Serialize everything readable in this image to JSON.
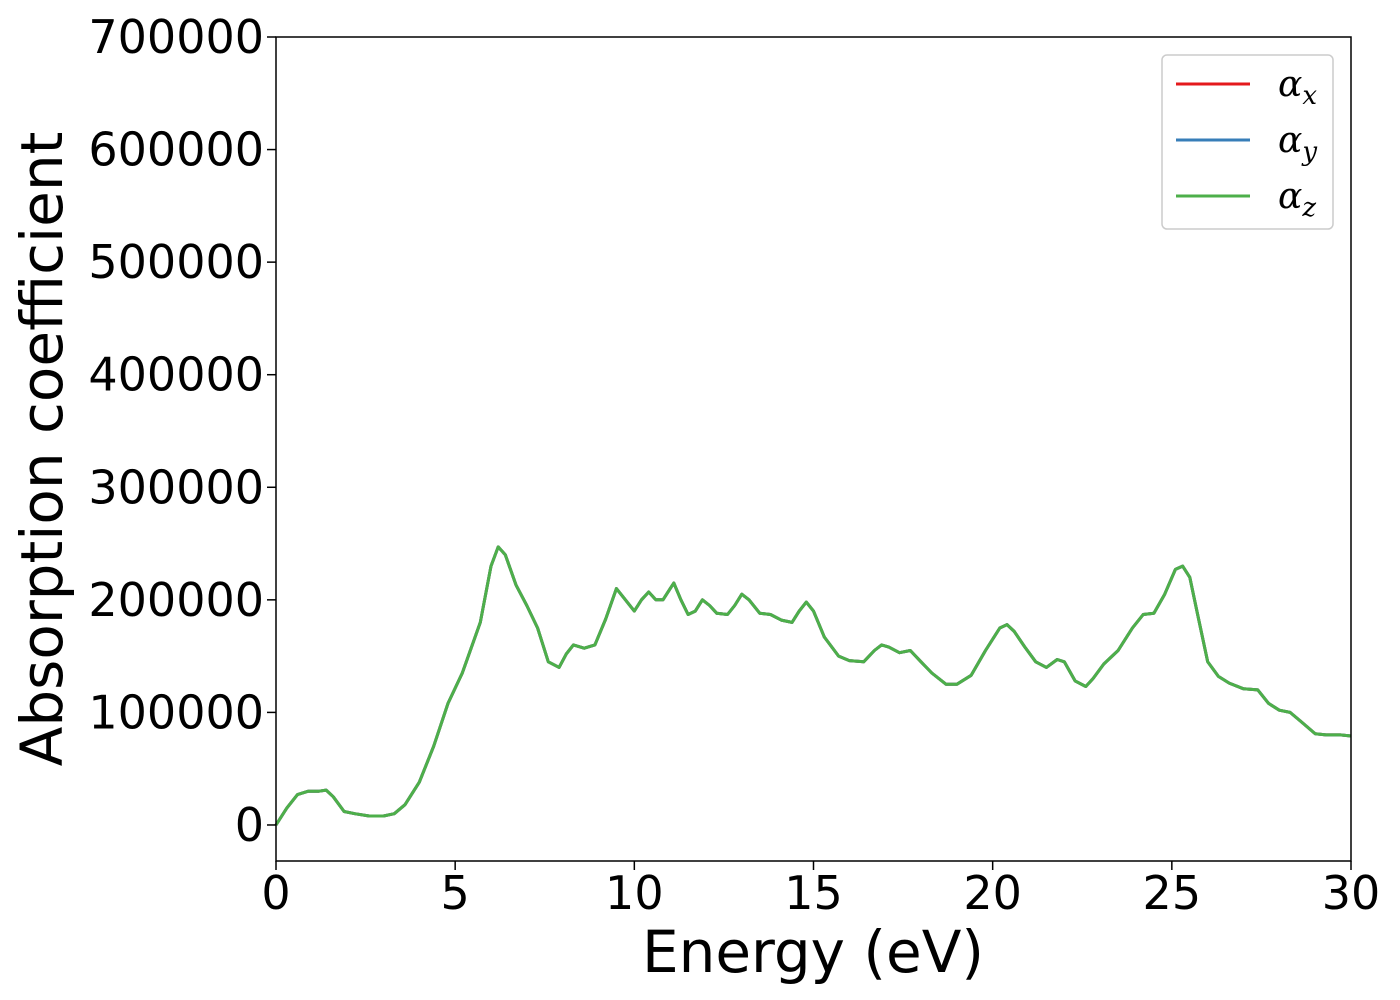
{
  "chart_data": {
    "type": "line",
    "xlabel": "Energy (eV)",
    "ylabel": "Absorption coefficient",
    "xlim": [
      0,
      30
    ],
    "ylim": [
      -32000,
      700000
    ],
    "x_ticks": [
      "0",
      "5",
      "10",
      "15",
      "20",
      "25",
      "30"
    ],
    "y_ticks": [
      "0",
      "100000",
      "200000",
      "300000",
      "400000",
      "500000",
      "600000",
      "700000"
    ],
    "legend_position": "top-right",
    "grid": false,
    "series": [
      {
        "name": "α",
        "subscript": "x",
        "color": "#e41a1c",
        "x": [
          0,
          0.3,
          0.6,
          0.9,
          1.2,
          1.4,
          1.6,
          1.9,
          2.2,
          2.6,
          3.0,
          3.3,
          3.6,
          4.0,
          4.4,
          4.8,
          5.2,
          5.7,
          6.0,
          6.2,
          6.4,
          6.7,
          7.0,
          7.3,
          7.6,
          7.9,
          8.1,
          8.3,
          8.6,
          8.9,
          9.2,
          9.5,
          9.7,
          10.0,
          10.2,
          10.4,
          10.6,
          10.8,
          11.0,
          11.1,
          11.3,
          11.5,
          11.7,
          11.9,
          12.1,
          12.3,
          12.6,
          12.8,
          13.0,
          13.2,
          13.5,
          13.8,
          14.1,
          14.4,
          14.6,
          14.8,
          15.0,
          15.3,
          15.7,
          16.0,
          16.4,
          16.7,
          16.9,
          17.1,
          17.4,
          17.7,
          18.0,
          18.3,
          18.7,
          19.0,
          19.4,
          19.8,
          20.2,
          20.4,
          20.6,
          20.9,
          21.2,
          21.5,
          21.8,
          22.0,
          22.3,
          22.6,
          22.8,
          23.1,
          23.5,
          23.9,
          24.2,
          24.5,
          24.8,
          25.1,
          25.3,
          25.5,
          25.7,
          26.0,
          26.3,
          26.6,
          27.0,
          27.4,
          27.7,
          28.0,
          28.3,
          28.6,
          29.0,
          29.3,
          29.7,
          30.0
        ],
        "values": [
          0,
          15000,
          27000,
          30000,
          30000,
          31000,
          25000,
          12000,
          10000,
          8000,
          8000,
          10000,
          18000,
          38000,
          70000,
          108000,
          135000,
          180000,
          230000,
          247000,
          240000,
          213000,
          195000,
          175000,
          145000,
          140000,
          152000,
          160000,
          157000,
          160000,
          183000,
          210000,
          202000,
          190000,
          200000,
          207000,
          200000,
          200000,
          210000,
          215000,
          200000,
          187000,
          190000,
          200000,
          195000,
          188000,
          187000,
          195000,
          205000,
          200000,
          188000,
          187000,
          182000,
          180000,
          190000,
          198000,
          190000,
          167000,
          150000,
          146000,
          145000,
          155000,
          160000,
          158000,
          153000,
          155000,
          145000,
          135000,
          125000,
          125000,
          133000,
          155000,
          175000,
          178000,
          172000,
          158000,
          145000,
          140000,
          147000,
          145000,
          128000,
          123000,
          130000,
          143000,
          155000,
          175000,
          187000,
          188000,
          205000,
          227000,
          230000,
          220000,
          190000,
          145000,
          132000,
          126000,
          121000,
          120000,
          108000,
          102000,
          100000,
          92000,
          81000,
          80000,
          80000,
          79000
        ]
      },
      {
        "name": "α",
        "subscript": "y",
        "color": "#377eb8",
        "x": [
          0,
          0.3,
          0.6,
          0.9,
          1.2,
          1.4,
          1.6,
          1.9,
          2.2,
          2.6,
          3.0,
          3.3,
          3.6,
          4.0,
          4.4,
          4.8,
          5.2,
          5.7,
          6.0,
          6.2,
          6.4,
          6.7,
          7.0,
          7.3,
          7.6,
          7.9,
          8.1,
          8.3,
          8.6,
          8.9,
          9.2,
          9.5,
          9.7,
          10.0,
          10.2,
          10.4,
          10.6,
          10.8,
          11.0,
          11.1,
          11.3,
          11.5,
          11.7,
          11.9,
          12.1,
          12.3,
          12.6,
          12.8,
          13.0,
          13.2,
          13.5,
          13.8,
          14.1,
          14.4,
          14.6,
          14.8,
          15.0,
          15.3,
          15.7,
          16.0,
          16.4,
          16.7,
          16.9,
          17.1,
          17.4,
          17.7,
          18.0,
          18.3,
          18.7,
          19.0,
          19.4,
          19.8,
          20.2,
          20.4,
          20.6,
          20.9,
          21.2,
          21.5,
          21.8,
          22.0,
          22.3,
          22.6,
          22.8,
          23.1,
          23.5,
          23.9,
          24.2,
          24.5,
          24.8,
          25.1,
          25.3,
          25.5,
          25.7,
          26.0,
          26.3,
          26.6,
          27.0,
          27.4,
          27.7,
          28.0,
          28.3,
          28.6,
          29.0,
          29.3,
          29.7,
          30.0
        ],
        "values": [
          0,
          15000,
          27000,
          30000,
          30000,
          31000,
          25000,
          12000,
          10000,
          8000,
          8000,
          10000,
          18000,
          38000,
          70000,
          108000,
          135000,
          180000,
          230000,
          247000,
          240000,
          213000,
          195000,
          175000,
          145000,
          140000,
          152000,
          160000,
          157000,
          160000,
          183000,
          210000,
          202000,
          190000,
          200000,
          207000,
          200000,
          200000,
          210000,
          215000,
          200000,
          187000,
          190000,
          200000,
          195000,
          188000,
          187000,
          195000,
          205000,
          200000,
          188000,
          187000,
          182000,
          180000,
          190000,
          198000,
          190000,
          167000,
          150000,
          146000,
          145000,
          155000,
          160000,
          158000,
          153000,
          155000,
          145000,
          135000,
          125000,
          125000,
          133000,
          155000,
          175000,
          178000,
          172000,
          158000,
          145000,
          140000,
          147000,
          145000,
          128000,
          123000,
          130000,
          143000,
          155000,
          175000,
          187000,
          188000,
          205000,
          227000,
          230000,
          220000,
          190000,
          145000,
          132000,
          126000,
          121000,
          120000,
          108000,
          102000,
          100000,
          92000,
          81000,
          80000,
          80000,
          79000
        ]
      },
      {
        "name": "α",
        "subscript": "z",
        "color": "#4daf4a",
        "x": [
          0,
          0.3,
          0.6,
          0.9,
          1.2,
          1.4,
          1.6,
          1.9,
          2.2,
          2.6,
          3.0,
          3.3,
          3.6,
          4.0,
          4.4,
          4.8,
          5.2,
          5.7,
          6.0,
          6.2,
          6.4,
          6.7,
          7.0,
          7.3,
          7.6,
          7.9,
          8.1,
          8.3,
          8.6,
          8.9,
          9.2,
          9.5,
          9.7,
          10.0,
          10.2,
          10.4,
          10.6,
          10.8,
          11.0,
          11.1,
          11.3,
          11.5,
          11.7,
          11.9,
          12.1,
          12.3,
          12.6,
          12.8,
          13.0,
          13.2,
          13.5,
          13.8,
          14.1,
          14.4,
          14.6,
          14.8,
          15.0,
          15.3,
          15.7,
          16.0,
          16.4,
          16.7,
          16.9,
          17.1,
          17.4,
          17.7,
          18.0,
          18.3,
          18.7,
          19.0,
          19.4,
          19.8,
          20.2,
          20.4,
          20.6,
          20.9,
          21.2,
          21.5,
          21.8,
          22.0,
          22.3,
          22.6,
          22.8,
          23.1,
          23.5,
          23.9,
          24.2,
          24.5,
          24.8,
          25.1,
          25.3,
          25.5,
          25.7,
          26.0,
          26.3,
          26.6,
          27.0,
          27.4,
          27.7,
          28.0,
          28.3,
          28.6,
          29.0,
          29.3,
          29.7,
          30.0
        ],
        "values": [
          0,
          15000,
          27000,
          30000,
          30000,
          31000,
          25000,
          12000,
          10000,
          8000,
          8000,
          10000,
          18000,
          38000,
          70000,
          108000,
          135000,
          180000,
          230000,
          247000,
          240000,
          213000,
          195000,
          175000,
          145000,
          140000,
          152000,
          160000,
          157000,
          160000,
          183000,
          210000,
          202000,
          190000,
          200000,
          207000,
          200000,
          200000,
          210000,
          215000,
          200000,
          187000,
          190000,
          200000,
          195000,
          188000,
          187000,
          195000,
          205000,
          200000,
          188000,
          187000,
          182000,
          180000,
          190000,
          198000,
          190000,
          167000,
          150000,
          146000,
          145000,
          155000,
          160000,
          158000,
          153000,
          155000,
          145000,
          135000,
          125000,
          125000,
          133000,
          155000,
          175000,
          178000,
          172000,
          158000,
          145000,
          140000,
          147000,
          145000,
          128000,
          123000,
          130000,
          143000,
          155000,
          175000,
          187000,
          188000,
          205000,
          227000,
          230000,
          220000,
          190000,
          145000,
          132000,
          126000,
          121000,
          120000,
          108000,
          102000,
          100000,
          92000,
          81000,
          80000,
          80000,
          79000
        ]
      }
    ]
  }
}
